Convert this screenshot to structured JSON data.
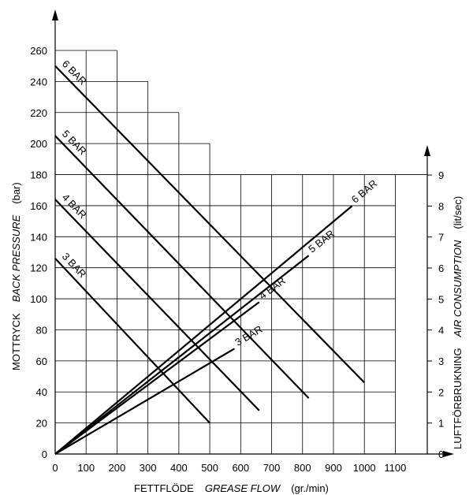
{
  "chart_data": {
    "type": "line",
    "x": {
      "label_sv": "FETTFLÖDE",
      "label_en": "GREASE FLOW",
      "unit": "(gr./min)",
      "range": [
        0,
        1200
      ],
      "ticks": [
        0,
        100,
        200,
        300,
        400,
        500,
        600,
        700,
        800,
        900,
        1000,
        1100
      ]
    },
    "y_left": {
      "label_sv": "MOTTRYCK",
      "label_en": "BACK PRESSURE",
      "unit": "(bar)",
      "range": [
        0,
        260
      ],
      "ticks": [
        0,
        20,
        40,
        60,
        80,
        100,
        120,
        140,
        160,
        180,
        200,
        220,
        240,
        260
      ]
    },
    "y_right": {
      "label_sv": "LUFTFÖRBRUKNING",
      "label_en": "AIR CONSUMPTION",
      "unit": "(lit/sec)",
      "range": [
        0,
        9
      ],
      "ticks": [
        0,
        1,
        2,
        3,
        4,
        5,
        6,
        7,
        8,
        9
      ]
    },
    "grid": true,
    "grid_steps": [
      {
        "x_to": 1100,
        "y_top": 180
      },
      {
        "x_to": 500,
        "y_top": 200
      },
      {
        "x_to": 400,
        "y_top": 220
      },
      {
        "x_to": 300,
        "y_top": 240
      },
      {
        "x_to": 200,
        "y_top": 260
      }
    ],
    "pressure_series": [
      {
        "name": "6 BAR",
        "x": [
          0,
          1000
        ],
        "y": [
          250,
          46
        ]
      },
      {
        "name": "5 BAR",
        "x": [
          0,
          820
        ],
        "y": [
          205,
          36
        ]
      },
      {
        "name": "4 BAR",
        "x": [
          0,
          660
        ],
        "y": [
          164,
          28
        ]
      },
      {
        "name": "3 BAR",
        "x": [
          0,
          500
        ],
        "y": [
          126,
          20
        ]
      }
    ],
    "air_series": [
      {
        "name": "6 BAR",
        "x": [
          0,
          960
        ],
        "y_right": [
          0,
          8.0
        ]
      },
      {
        "name": "5 BAR",
        "x": [
          0,
          820
        ],
        "y_right": [
          0,
          6.4
        ]
      },
      {
        "name": "4 BAR",
        "x": [
          0,
          660
        ],
        "y_right": [
          0,
          4.9
        ]
      },
      {
        "name": "3 BAR",
        "x": [
          0,
          580
        ],
        "y_right": [
          0,
          3.4
        ]
      }
    ]
  }
}
